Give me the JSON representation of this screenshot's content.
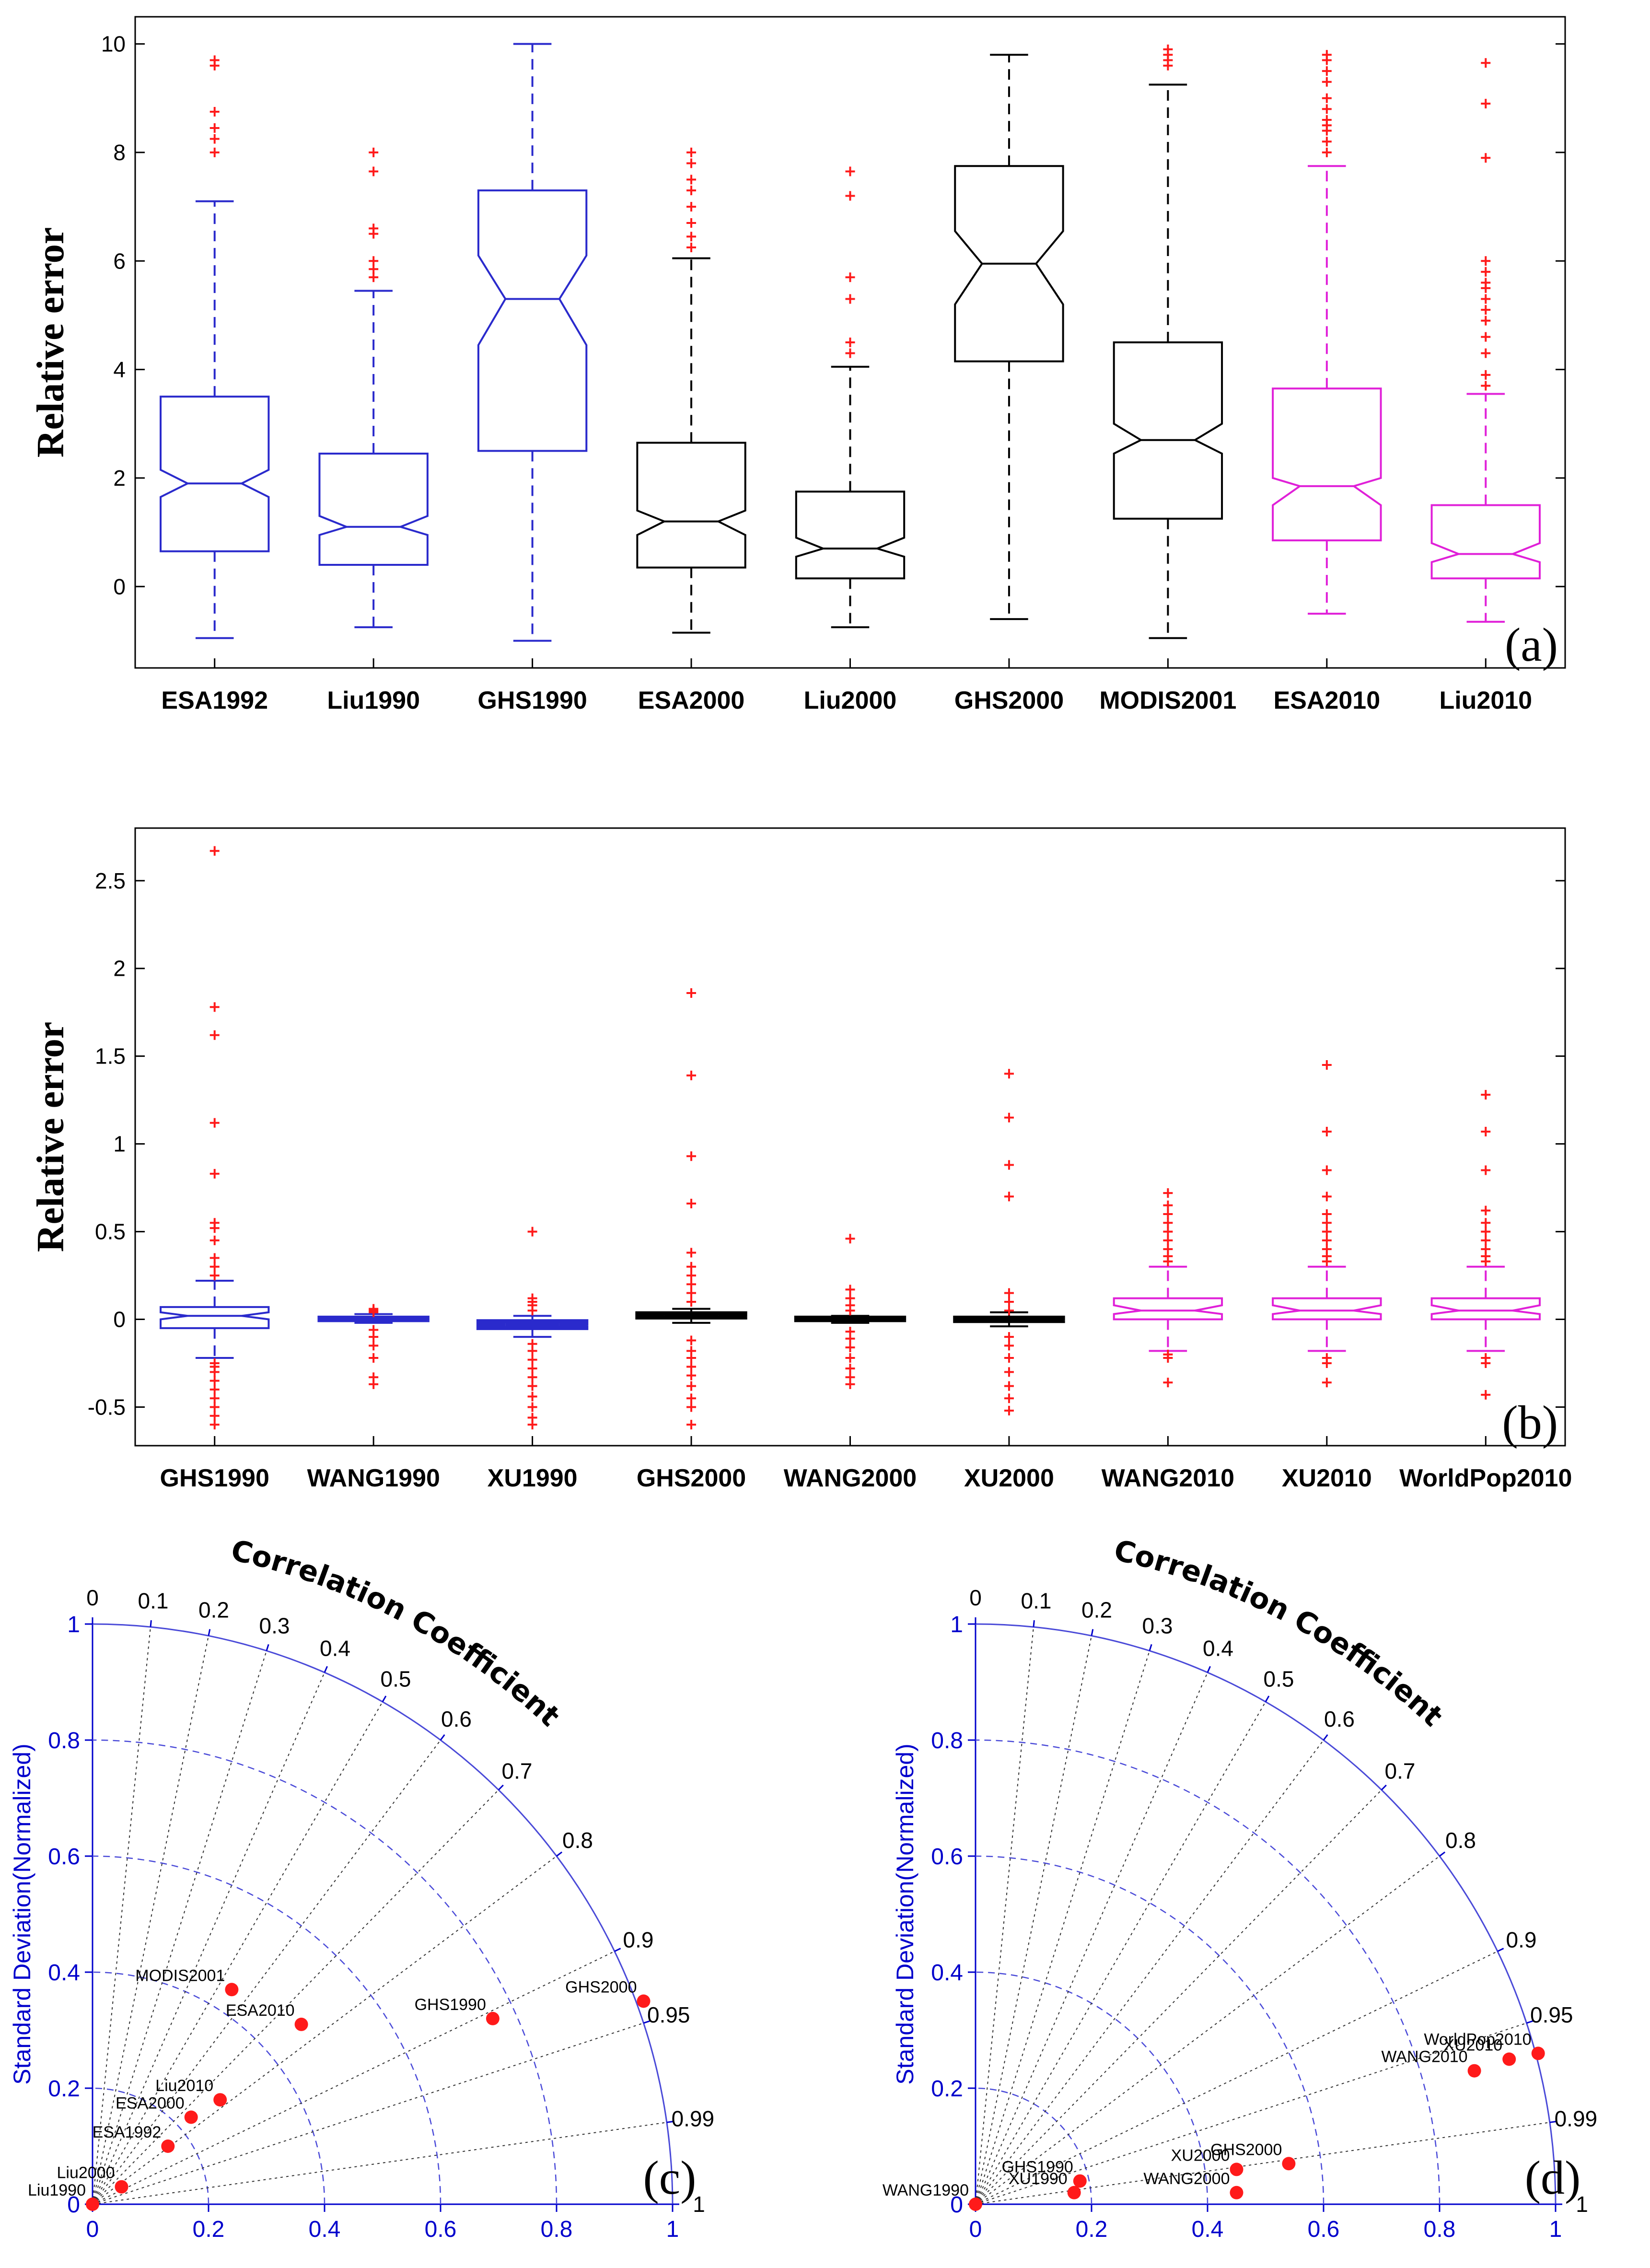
{
  "chart_data": [
    {
      "type": "box",
      "panel_label": "(a)",
      "ylabel": "Relative error",
      "ylim": [
        -1.5,
        10.5
      ],
      "yticks": [
        "0",
        "2",
        "4",
        "6",
        "8",
        "10"
      ],
      "boxes": [
        {
          "name": "ESA1992",
          "color": "#2a2acc",
          "q1": 0.65,
          "median": 1.9,
          "q3": 3.5,
          "wlo": -0.95,
          "whi": 7.1,
          "nlo": 1.65,
          "nhi": 2.15,
          "outliers": [
            8.0,
            8.25,
            8.45,
            8.75,
            9.6,
            9.7
          ]
        },
        {
          "name": "Liu1990",
          "color": "#2a2acc",
          "q1": 0.4,
          "median": 1.1,
          "q3": 2.45,
          "wlo": -0.75,
          "whi": 5.45,
          "nlo": 0.95,
          "nhi": 1.3,
          "outliers": [
            5.7,
            5.85,
            6.0,
            6.5,
            6.6,
            7.65,
            8.0
          ]
        },
        {
          "name": "GHS1990",
          "color": "#2a2acc",
          "q1": 2.5,
          "median": 5.3,
          "q3": 7.3,
          "wlo": -1.0,
          "whi": 10.0,
          "nlo": 4.45,
          "nhi": 6.1,
          "outliers": []
        },
        {
          "name": "ESA2000",
          "color": "#000000",
          "q1": 0.35,
          "median": 1.2,
          "q3": 2.65,
          "wlo": -0.85,
          "whi": 6.05,
          "nlo": 0.95,
          "nhi": 1.4,
          "outliers": [
            6.25,
            6.45,
            6.7,
            7.0,
            7.3,
            7.5,
            7.8,
            8.0
          ]
        },
        {
          "name": "Liu2000",
          "color": "#000000",
          "q1": 0.15,
          "median": 0.7,
          "q3": 1.75,
          "wlo": -0.75,
          "whi": 4.05,
          "nlo": 0.55,
          "nhi": 0.9,
          "outliers": [
            4.3,
            4.5,
            5.3,
            5.7,
            7.2,
            7.65
          ]
        },
        {
          "name": "GHS2000",
          "color": "#000000",
          "q1": 4.15,
          "median": 5.95,
          "q3": 7.75,
          "wlo": -0.6,
          "whi": 9.8,
          "nlo": 5.2,
          "nhi": 6.55,
          "outliers": []
        },
        {
          "name": "MODIS2001",
          "color": "#000000",
          "q1": 1.25,
          "median": 2.7,
          "q3": 4.5,
          "wlo": -0.95,
          "whi": 9.25,
          "nlo": 2.45,
          "nhi": 3.0,
          "outliers": [
            9.6,
            9.7,
            9.8,
            9.9
          ]
        },
        {
          "name": "ESA2010",
          "color": "#e020d8",
          "q1": 0.85,
          "median": 1.85,
          "q3": 3.65,
          "wlo": -0.5,
          "whi": 7.75,
          "nlo": 1.5,
          "nhi": 2.0,
          "outliers": [
            8.0,
            8.2,
            8.4,
            8.5,
            8.6,
            8.8,
            9.0,
            9.3,
            9.5,
            9.7,
            9.8
          ]
        },
        {
          "name": "Liu2010",
          "color": "#e020d8",
          "q1": 0.15,
          "median": 0.6,
          "q3": 1.5,
          "wlo": -0.65,
          "whi": 3.55,
          "nlo": 0.45,
          "nhi": 0.8,
          "outliers": [
            3.7,
            3.9,
            4.3,
            4.6,
            4.9,
            5.1,
            5.3,
            5.5,
            5.6,
            5.8,
            6.0,
            7.9,
            8.9,
            9.65
          ]
        }
      ]
    },
    {
      "type": "box",
      "panel_label": "(b)",
      "ylabel": "Relative error",
      "ylim": [
        -0.72,
        2.8
      ],
      "yticks": [
        "-0.5",
        "0",
        "0.5",
        "1",
        "1.5",
        "2",
        "2.5"
      ],
      "boxes": [
        {
          "name": "GHS1990",
          "color": "#2a2acc",
          "q1": -0.05,
          "median": 0.02,
          "q3": 0.07,
          "wlo": -0.22,
          "whi": 0.22,
          "nlo": 0.0,
          "nhi": 0.04,
          "outliers": [
            -0.6,
            -0.55,
            -0.5,
            -0.45,
            -0.4,
            -0.35,
            -0.3,
            -0.27,
            -0.25,
            0.25,
            0.3,
            0.35,
            0.45,
            0.52,
            0.55,
            0.83,
            1.12,
            1.62,
            1.78,
            2.67
          ]
        },
        {
          "name": "WANG1990",
          "color": "#2a2acc",
          "q1": -0.005,
          "median": 0.0,
          "q3": 0.01,
          "wlo": -0.02,
          "whi": 0.03,
          "nlo": -0.002,
          "nhi": 0.002,
          "outliers": [
            -0.37,
            -0.33,
            -0.22,
            -0.15,
            -0.1,
            -0.06,
            0.04,
            0.05,
            0.06
          ]
        },
        {
          "name": "XU1990",
          "color": "#2a2acc",
          "q1": -0.05,
          "median": -0.03,
          "q3": -0.01,
          "wlo": -0.1,
          "whi": 0.02,
          "nlo": -0.035,
          "nhi": -0.025,
          "outliers": [
            -0.6,
            -0.56,
            -0.5,
            -0.44,
            -0.38,
            -0.33,
            -0.28,
            -0.23,
            -0.18,
            -0.14,
            0.05,
            0.08,
            0.1,
            0.12,
            0.5
          ]
        },
        {
          "name": "GHS2000",
          "color": "#000000",
          "q1": 0.01,
          "median": 0.02,
          "q3": 0.035,
          "wlo": -0.02,
          "whi": 0.06,
          "nlo": 0.015,
          "nhi": 0.025,
          "outliers": [
            -0.6,
            -0.5,
            -0.45,
            -0.38,
            -0.32,
            -0.27,
            -0.22,
            -0.18,
            -0.12,
            0.1,
            0.15,
            0.2,
            0.25,
            0.3,
            0.38,
            0.66,
            0.93,
            1.39,
            1.86
          ]
        },
        {
          "name": "WANG2000",
          "color": "#000000",
          "q1": -0.005,
          "median": 0.0,
          "q3": 0.01,
          "wlo": -0.02,
          "whi": 0.02,
          "nlo": -0.002,
          "nhi": 0.002,
          "outliers": [
            -0.37,
            -0.33,
            -0.28,
            -0.22,
            -0.16,
            -0.11,
            -0.07,
            0.05,
            0.08,
            0.12,
            0.17,
            0.46
          ]
        },
        {
          "name": "XU2000",
          "color": "#000000",
          "q1": -0.01,
          "median": 0.0,
          "q3": 0.01,
          "wlo": -0.04,
          "whi": 0.04,
          "nlo": -0.003,
          "nhi": 0.003,
          "outliers": [
            -0.52,
            -0.45,
            -0.38,
            -0.3,
            -0.22,
            -0.15,
            -0.1,
            0.05,
            0.1,
            0.15,
            0.7,
            0.88,
            1.15,
            1.4
          ]
        },
        {
          "name": "WANG2010",
          "color": "#e020d8",
          "q1": 0.0,
          "median": 0.05,
          "q3": 0.12,
          "wlo": -0.18,
          "whi": 0.3,
          "nlo": 0.03,
          "nhi": 0.08,
          "outliers": [
            -0.36,
            -0.22,
            -0.2,
            0.33,
            0.36,
            0.4,
            0.45,
            0.5,
            0.55,
            0.6,
            0.65,
            0.72
          ]
        },
        {
          "name": "XU2010",
          "color": "#e020d8",
          "q1": 0.0,
          "median": 0.05,
          "q3": 0.12,
          "wlo": -0.18,
          "whi": 0.3,
          "nlo": 0.03,
          "nhi": 0.08,
          "outliers": [
            -0.36,
            -0.25,
            -0.22,
            0.33,
            0.36,
            0.4,
            0.45,
            0.5,
            0.55,
            0.6,
            0.7,
            0.85,
            1.07,
            1.45
          ]
        },
        {
          "name": "WorldPop2010",
          "color": "#e020d8",
          "q1": 0.0,
          "median": 0.05,
          "q3": 0.12,
          "wlo": -0.18,
          "whi": 0.3,
          "nlo": 0.03,
          "nhi": 0.08,
          "outliers": [
            -0.43,
            -0.25,
            -0.22,
            0.33,
            0.36,
            0.4,
            0.45,
            0.5,
            0.55,
            0.62,
            0.85,
            1.07,
            1.28
          ]
        }
      ]
    },
    {
      "type": "taylor",
      "panel_label": "(c)",
      "ylabel": "Standard Deviation(Normalized)",
      "corr_label": "Correlation Coefficient",
      "std_ticks": [
        "0",
        "0.2",
        "0.4",
        "0.6",
        "0.8",
        "1"
      ],
      "corr_ticks": [
        "0",
        "0.1",
        "0.2",
        "0.3",
        "0.4",
        "0.5",
        "0.6",
        "0.7",
        "0.8",
        "0.9",
        "0.95",
        "0.99",
        "1"
      ],
      "points": [
        {
          "name": "MODIS2001",
          "x": 0.24,
          "y": 0.37
        },
        {
          "name": "ESA2010",
          "x": 0.36,
          "y": 0.31
        },
        {
          "name": "GHS1990",
          "x": 0.69,
          "y": 0.32
        },
        {
          "name": "GHS2000",
          "x": 0.95,
          "y": 0.35
        },
        {
          "name": "Liu2010",
          "x": 0.22,
          "y": 0.18
        },
        {
          "name": "ESA2000",
          "x": 0.17,
          "y": 0.15
        },
        {
          "name": "ESA1992",
          "x": 0.13,
          "y": 0.1
        },
        {
          "name": "Liu2000",
          "x": 0.05,
          "y": 0.03
        },
        {
          "name": "Liu1990",
          "x": 0.0,
          "y": 0.0
        }
      ]
    },
    {
      "type": "taylor",
      "panel_label": "(d)",
      "ylabel": "Standard Deviation(Normalized)",
      "corr_label": "Correlation Coefficient",
      "std_ticks": [
        "0",
        "0.2",
        "0.4",
        "0.6",
        "0.8",
        "1"
      ],
      "corr_ticks": [
        "0",
        "0.1",
        "0.2",
        "0.3",
        "0.4",
        "0.5",
        "0.6",
        "0.7",
        "0.8",
        "0.9",
        "0.95",
        "0.99",
        "1"
      ],
      "points": [
        {
          "name": "WorldPop2010",
          "x": 0.97,
          "y": 0.26
        },
        {
          "name": "XU2010",
          "x": 0.92,
          "y": 0.25
        },
        {
          "name": "WANG2010",
          "x": 0.86,
          "y": 0.23
        },
        {
          "name": "GHS2000",
          "x": 0.54,
          "y": 0.07
        },
        {
          "name": "XU2000",
          "x": 0.45,
          "y": 0.06
        },
        {
          "name": "WANG2000",
          "x": 0.45,
          "y": 0.02
        },
        {
          "name": "GHS1990",
          "x": 0.18,
          "y": 0.04
        },
        {
          "name": "XU1990",
          "x": 0.17,
          "y": 0.02
        },
        {
          "name": "WANG1990",
          "x": 0.0,
          "y": 0.0
        }
      ]
    }
  ]
}
